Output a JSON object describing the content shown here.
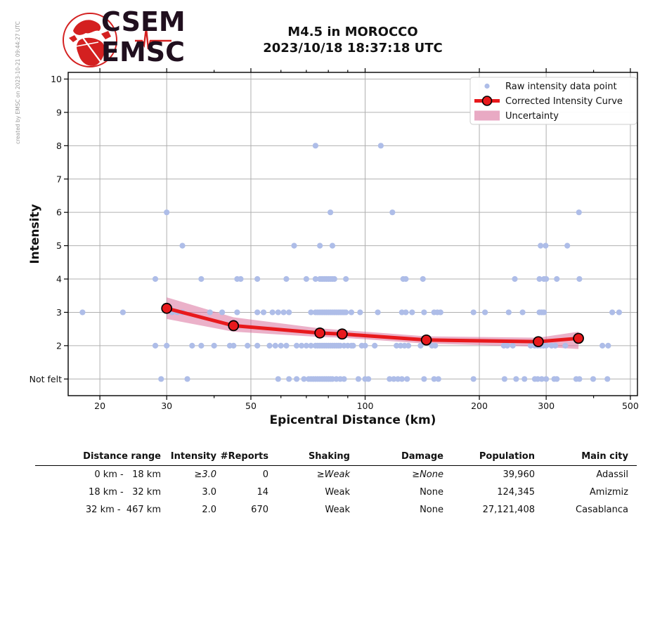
{
  "watermark": "created by EMSC on 2023-10-21 09:44:27 UTC",
  "logo": {
    "line1": "CSEM",
    "line2": "EMSC"
  },
  "header": {
    "title_line1": "M4.5 in MOROCCO",
    "title_line2": "2023/10/18 18:37:18 UTC"
  },
  "chart_data": {
    "type": "scatter",
    "title": "M4.5 in MOROCCO 2023/10/18 18:37:18 UTC",
    "xlabel": "Epicentral Distance (km)",
    "ylabel": "Intensity",
    "x_scale": "log",
    "xlim": [
      16.5,
      522
    ],
    "ylim": [
      0.5,
      10.2
    ],
    "x_ticks": [
      20,
      30,
      50,
      100,
      200,
      300,
      500
    ],
    "x_minor_ticks": [
      40,
      60,
      70,
      80,
      90,
      400
    ],
    "y_tick_labels": [
      "10",
      "9",
      "8",
      "7",
      "6",
      "5",
      "4",
      "3",
      "2",
      "Not felt"
    ],
    "y_tick_values": [
      10,
      9,
      8,
      7,
      6,
      5,
      4,
      3,
      2,
      1
    ],
    "grid": true,
    "legend_position": "upper right",
    "legend": [
      {
        "label": "Raw intensity data point",
        "type": "dot"
      },
      {
        "label": "Corrected Intensity Curve",
        "type": "line-marker"
      },
      {
        "label": "Uncertainty",
        "type": "band"
      }
    ],
    "colors": {
      "raw_point": "#aebde8",
      "curve": "#e8191c",
      "curve_marker_fill": "#e8191c",
      "curve_marker_edge": "#000000",
      "band": "#d76494",
      "grid": "#b0b0b0",
      "frame": "#000000"
    },
    "raw_points": [
      {
        "intensity": 8,
        "distances": [
          74,
          110
        ]
      },
      {
        "intensity": 6,
        "distances": [
          30,
          81,
          118,
          366
        ]
      },
      {
        "intensity": 5,
        "distances": [
          33,
          65,
          76,
          82,
          290,
          299,
          341
        ]
      },
      {
        "intensity": 4,
        "distances": [
          28,
          37,
          46,
          47,
          52,
          62,
          70,
          74,
          76,
          77,
          78,
          79,
          80,
          81,
          82,
          83,
          89,
          126,
          128,
          142,
          248,
          288,
          296,
          300,
          320,
          367
        ]
      },
      {
        "intensity": 3,
        "distances": [
          18,
          23,
          31,
          32,
          33,
          39,
          42,
          46,
          52,
          54,
          57,
          59,
          61,
          63,
          72,
          74,
          75,
          76,
          77,
          78,
          79,
          80,
          81,
          82,
          83,
          84,
          85,
          86,
          87,
          88,
          89,
          92,
          97,
          108,
          125,
          128,
          133,
          143,
          152,
          155,
          158,
          193,
          207,
          239,
          260,
          288,
          292,
          296,
          448,
          467
        ]
      },
      {
        "intensity": 2,
        "distances": [
          28,
          30,
          35,
          37,
          40,
          44,
          45,
          49,
          52,
          56,
          58,
          60,
          62,
          66,
          68,
          70,
          72,
          74,
          75,
          76,
          77,
          78,
          79,
          80,
          81,
          82,
          83,
          84,
          85,
          86,
          88,
          90,
          92,
          93,
          98,
          100,
          106,
          121,
          124,
          127,
          130,
          140,
          150,
          153,
          232,
          237,
          245,
          273,
          280,
          285,
          290,
          295,
          300,
          310,
          317,
          337,
          422,
          437
        ]
      },
      {
        "intensity": 1,
        "distances": [
          29,
          34,
          59,
          63,
          66,
          69,
          71,
          72,
          73,
          74,
          75,
          76,
          77,
          78,
          79,
          80,
          81,
          82,
          84,
          86,
          88,
          96,
          100,
          102,
          116,
          119,
          122,
          125,
          129,
          143,
          152,
          156,
          193,
          233,
          250,
          263,
          280,
          285,
          292,
          300,
          315,
          320,
          360,
          367,
          399,
          435
        ]
      }
    ],
    "curve": {
      "distances": [
        30,
        45,
        76,
        87,
        145,
        286,
        365
      ],
      "intensities": [
        3.12,
        2.6,
        2.38,
        2.35,
        2.17,
        2.12,
        2.22
      ]
    },
    "uncertainty": {
      "distances": [
        30,
        45,
        76,
        87,
        145,
        286,
        365
      ],
      "upper": [
        3.45,
        2.85,
        2.52,
        2.47,
        2.28,
        2.24,
        2.42
      ],
      "lower": [
        2.8,
        2.42,
        2.26,
        2.24,
        2.06,
        1.97,
        1.9
      ]
    }
  },
  "table": {
    "headers": [
      "Distance range",
      "Intensity",
      "#Reports",
      "Shaking",
      "Damage",
      "Population",
      "Main city"
    ],
    "rows": [
      [
        "0 km -   18 km",
        "≥3.0",
        "0",
        "≥Weak",
        "≥None",
        "39,960",
        "Adassil"
      ],
      [
        "18 km -   32 km",
        "3.0",
        "14",
        "Weak",
        "None",
        "124,345",
        "Amizmiz"
      ],
      [
        "32 km -  467 km",
        "2.0",
        "670",
        "Weak",
        "None",
        "27,121,408",
        "Casablanca"
      ]
    ]
  }
}
